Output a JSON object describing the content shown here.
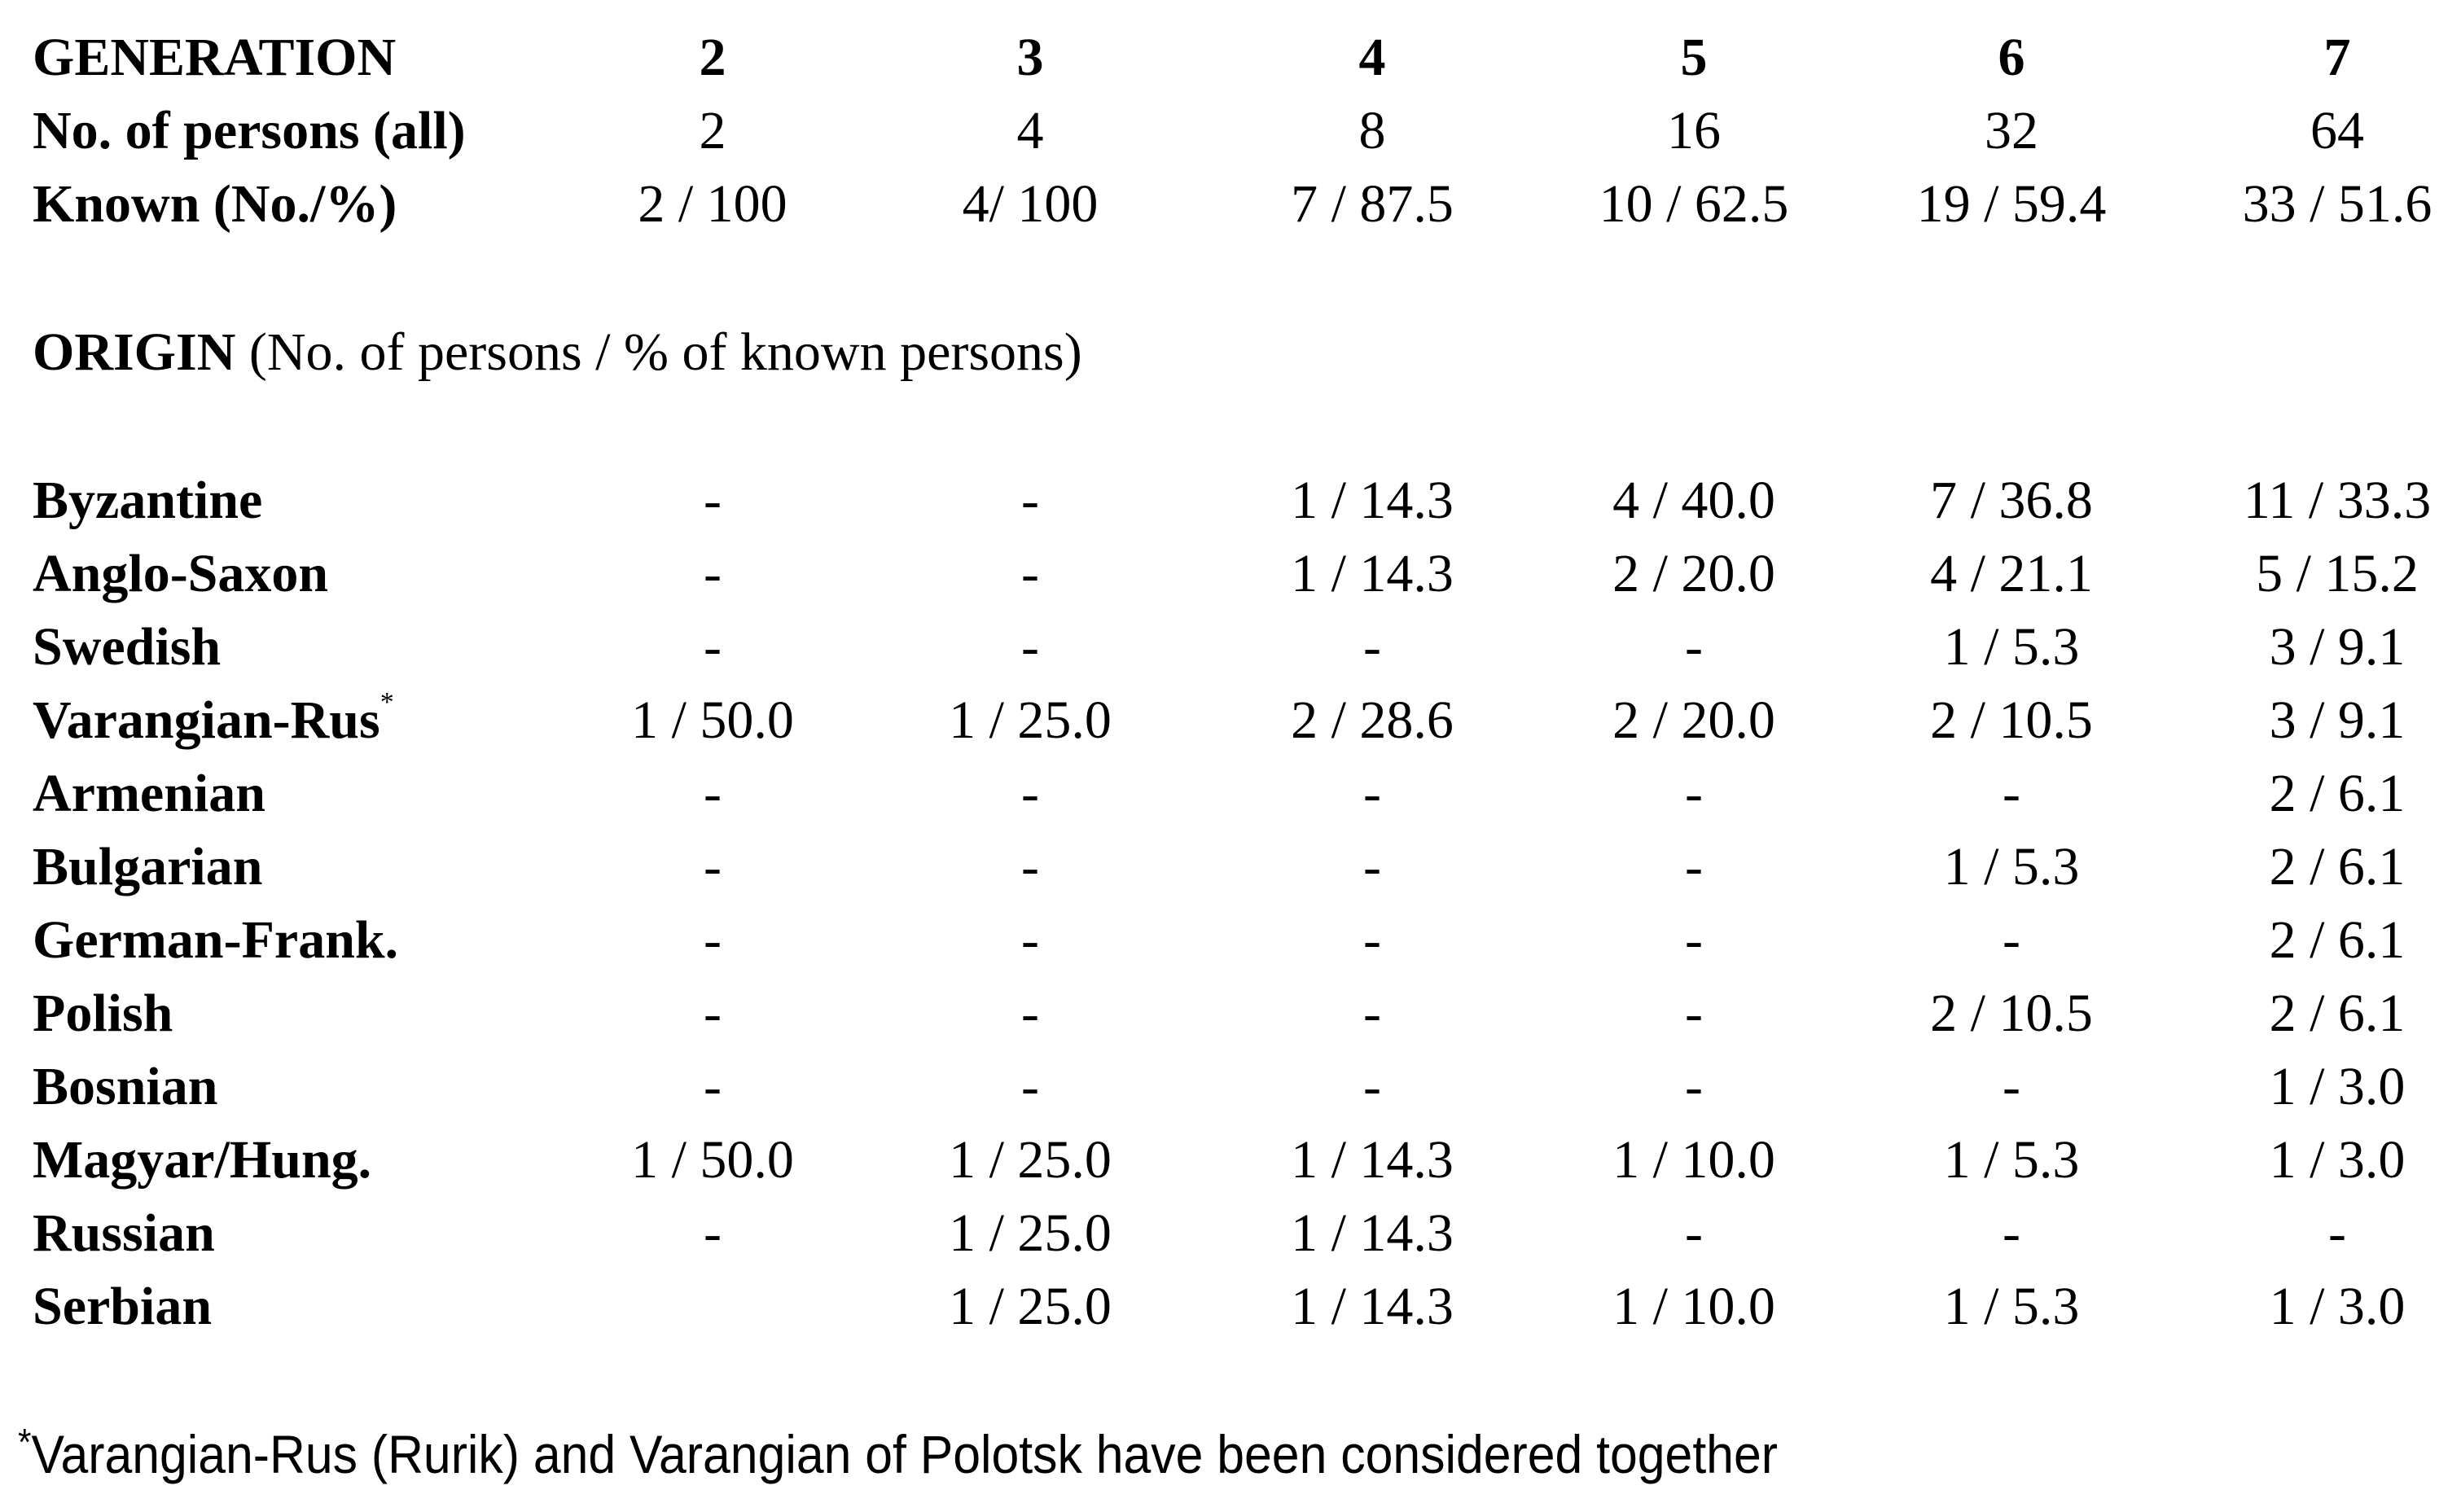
{
  "header": {
    "generation_label": "GENERATION",
    "generations": [
      "2",
      "3",
      "4",
      "5",
      "6",
      "7"
    ],
    "persons_label": "No. of persons (all)",
    "persons": [
      "2",
      "4",
      "8",
      "16",
      "32",
      "64"
    ],
    "known_label": "Known (No./%)",
    "known": [
      "2 / 100",
      "4/ 100",
      "7 / 87.5",
      "10 / 62.5",
      "19 / 59.4",
      "33 / 51.6"
    ]
  },
  "origin": {
    "heading_bold": "ORIGIN",
    "heading_rest": " (No. of persons / % of known persons)"
  },
  "rows": [
    {
      "label": "Byzantine",
      "mark": "",
      "values": [
        "-",
        "-",
        "1 / 14.3",
        "4 / 40.0",
        "7 / 36.8",
        "11 / 33.3"
      ]
    },
    {
      "label": "Anglo-Saxon",
      "mark": "",
      "values": [
        "-",
        "-",
        "1 / 14.3",
        "2 / 20.0",
        "4 / 21.1",
        "5 / 15.2"
      ]
    },
    {
      "label": "Swedish",
      "mark": "",
      "values": [
        "-",
        "-",
        "-",
        "-",
        "1 /  5.3",
        "3 / 9.1"
      ]
    },
    {
      "label": "Varangian-Rus",
      "mark": "*",
      "values": [
        "1 / 50.0",
        "1 / 25.0",
        "2 / 28.6",
        "2 / 20.0",
        "2 / 10.5",
        "3 / 9.1"
      ]
    },
    {
      "label": "Armenian",
      "mark": "",
      "values": [
        "-",
        "-",
        "-",
        "-",
        "-",
        "2 / 6.1"
      ]
    },
    {
      "label": "Bulgarian",
      "mark": "",
      "values": [
        "-",
        "-",
        "-",
        "-",
        "1 / 5.3",
        "2 / 6.1"
      ]
    },
    {
      "label": "German-Frank.",
      "mark": "",
      "values": [
        "-",
        "-",
        "-",
        "-",
        "-",
        "2 / 6.1"
      ]
    },
    {
      "label": "Polish",
      "mark": "",
      "values": [
        "-",
        "-",
        "-",
        "-",
        "2 / 10.5",
        "2 / 6.1"
      ]
    },
    {
      "label": "Bosnian",
      "mark": "",
      "values": [
        "-",
        "-",
        "-",
        "-",
        "-",
        "1 / 3.0"
      ]
    },
    {
      "label": "Magyar/Hung.",
      "mark": "",
      "values": [
        "1 / 50.0",
        "1 / 25.0",
        "1 / 14.3",
        "1 / 10.0",
        "1 / 5.3",
        "1 / 3.0"
      ]
    },
    {
      "label": "Russian",
      "mark": "",
      "values": [
        "-",
        "1 / 25.0",
        "1 / 14.3",
        "-",
        "-",
        "-"
      ]
    },
    {
      "label": "Serbian",
      "mark": "",
      "values": [
        "",
        "1 / 25.0",
        "1 / 14.3",
        "1 / 10.0",
        "1 / 5.3",
        "1 / 3.0"
      ]
    }
  ],
  "footnote": {
    "mark": "*",
    "text": "Varangian-Rus (Rurik) and Varangian of Polotsk have been considered together"
  }
}
